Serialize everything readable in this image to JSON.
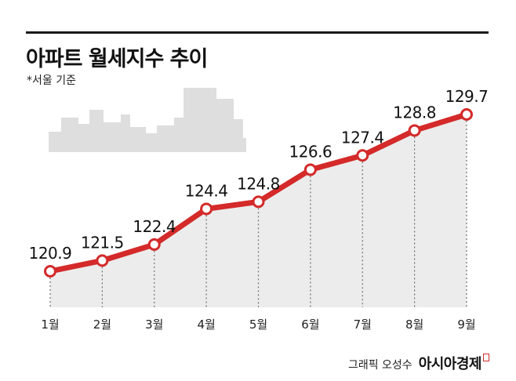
{
  "header": {
    "title": "아파트 월세지수 추이",
    "subtitle": "*서울 기준"
  },
  "footer": {
    "credit": "그래픽 오성수",
    "brand": "아시아경제"
  },
  "colors": {
    "line": "#d42a2a",
    "area": "#ececec",
    "skyline": "#dedede"
  },
  "chart_data": {
    "type": "line",
    "categories": [
      "1월",
      "2월",
      "3월",
      "4월",
      "5월",
      "6월",
      "7월",
      "8월",
      "9월"
    ],
    "values": [
      120.9,
      121.5,
      122.4,
      124.4,
      124.8,
      126.6,
      127.4,
      128.8,
      129.7
    ],
    "value_labels": [
      "120.9",
      "121.5",
      "122.4",
      "124.4",
      "124.8",
      "126.6",
      "127.4",
      "128.8",
      "129.7"
    ],
    "title": "아파트 월세지수 추이",
    "subtitle": "*서울 기준",
    "grid": false,
    "legend": "none"
  }
}
